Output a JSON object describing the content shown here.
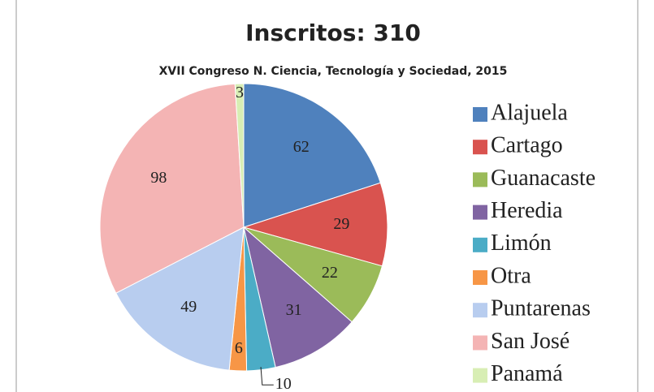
{
  "chart_data": {
    "type": "pie",
    "title": "Inscritos: 310",
    "subtitle": "XVII Congreso N. Ciencia, Tecnología y Sociedad, 2015",
    "categories": [
      "Alajuela",
      "Cartago",
      "Guanacaste",
      "Heredia",
      "Limón",
      "Otra",
      "Puntarenas",
      "San José",
      "Panamá"
    ],
    "values": [
      62,
      29,
      22,
      31,
      10,
      6,
      49,
      98,
      3
    ],
    "colors": [
      "#4f81bd",
      "#d9534f",
      "#9bbb59",
      "#8064a2",
      "#4bacc6",
      "#f79646",
      "#b8cdef",
      "#f4b4b4",
      "#d8eeb4"
    ],
    "legend": "right"
  }
}
